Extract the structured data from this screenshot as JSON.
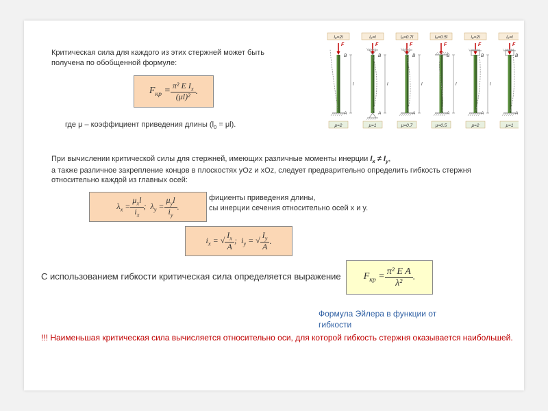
{
  "text": {
    "intro_line1": "Критическая сила для каждого из этих стержней может быть",
    "intro_line2": "получена по обобщенной формуле:",
    "where": "где μ – коэффициент  приведения длины (l",
    "where_sub": "0",
    "where_end": " = μl).",
    "para2_l1": "При вычислении критической силы для стержней, имеющих различные моменты инерции ",
    "para2_bold": "I",
    "para2_subx": "x",
    "para2_ne": " ≠ I",
    "para2_suby": "y",
    "para2_comma": ",",
    "para2_l2": "а также различное закрепление концов в плоскостях yOz и xOz, следует предварительно определить гибкость стержня",
    "para2_l3": "относительно каждой из главных осей:",
    "mid1": "фициенты приведения длины,",
    "mid2": "сы инерции сечения относительно осей x и y.",
    "use_flex": "С использованием гибкости критическая сила определяется выражение",
    "euler_label": "Формула Эйлера в функции от гибкости",
    "warning": "!!! Наименьшая критическая сила вычисляется относительно оси, для которой гибкость стержня оказывается наибольшей."
  },
  "formulas": {
    "f1_left": "F",
    "f1_sub": "кр",
    "f1_num": "π² E I",
    "f1_num_sub": "x",
    "f1_den": "(μl)²",
    "f2_part1_left": "λ",
    "f2_part1_sub": "x",
    "f2_part1_num": "μ",
    "f2_part1_num2": "l",
    "f2_part1_den": "i",
    "f2_part2_sub": "y",
    "f3_left": "i",
    "f3_subx": "x",
    "f3_eq": " = ",
    "f3_num": "I",
    "f3_den": "A",
    "f3_suby": "y",
    "f4_left": "F",
    "f4_sub": "кр",
    "f4_num": "π² E A",
    "f4_den": "λ²"
  },
  "diagram": {
    "columns": [
      {
        "mu_label": "μ=2",
        "l0_label": "l₀=2l",
        "top_fix": "free",
        "bot_fix": "fixed"
      },
      {
        "mu_label": "μ=1",
        "l0_label": "l₀=l",
        "top_fix": "pin",
        "bot_fix": "pin"
      },
      {
        "mu_label": "μ=0.7",
        "l0_label": "l₀=0.7l",
        "top_fix": "pin",
        "bot_fix": "fixed"
      },
      {
        "mu_label": "μ=0.5",
        "l0_label": "l₀=0.5l",
        "top_fix": "fixed",
        "bot_fix": "fixed"
      },
      {
        "mu_label": "μ=2",
        "l0_label": "l₀=2l",
        "top_fix": "slider",
        "bot_fix": "fixed"
      },
      {
        "mu_label": "μ=1",
        "l0_label": "l₀=l",
        "top_fix": "slider",
        "bot_fix": "fixed"
      }
    ],
    "force_label": "F",
    "length_label": "l",
    "top_pt": "B",
    "bot_pt": "A",
    "colors": {
      "rod": "#5a8f3d",
      "rod_dark": "#3a6028",
      "force": "#c00000",
      "curve": "#888",
      "support": "#999",
      "label_box_fill": "#f8ecd9",
      "label_box_border": "#c9a86a",
      "mu_box_fill": "#e8f0e0",
      "text": "#333"
    }
  }
}
